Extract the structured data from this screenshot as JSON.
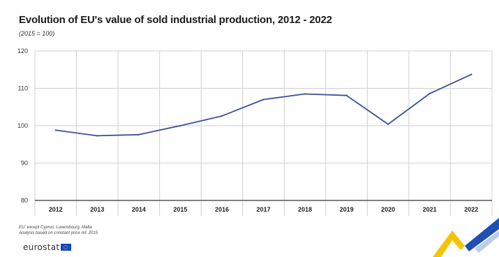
{
  "title": "Evolution of EU's value of sold industrial production, 2012 - 2022",
  "subtitle": "(2015 = 100)",
  "notes": [
    "EU: except Cyprus, Luxembourg, Malta",
    "Analysis based on constant price ref. 2015"
  ],
  "logo": {
    "text": "eurostat",
    "flag": "eu-flag-icon"
  },
  "colors": {
    "line": "#3d4f9f",
    "grid": "#cfcfcf",
    "axis": "#555555",
    "brand_yellow": "#f5c400",
    "brand_blue": "#1f4fb5"
  },
  "chart_data": {
    "type": "line",
    "categories": [
      "2012",
      "2013",
      "2014",
      "2015",
      "2016",
      "2017",
      "2018",
      "2019",
      "2020",
      "2021",
      "2022"
    ],
    "series": [
      {
        "values": [
          98.8,
          97.3,
          97.6,
          100.0,
          102.6,
          107.0,
          108.5,
          108.1,
          100.4,
          108.6,
          113.7
        ]
      }
    ],
    "yticks": [
      80,
      90,
      100,
      110,
      120
    ],
    "ylim": [
      80,
      120
    ],
    "grid": {
      "horizontal": true,
      "vertical": true
    },
    "legend": "none",
    "xlabel": "",
    "ylabel": ""
  }
}
